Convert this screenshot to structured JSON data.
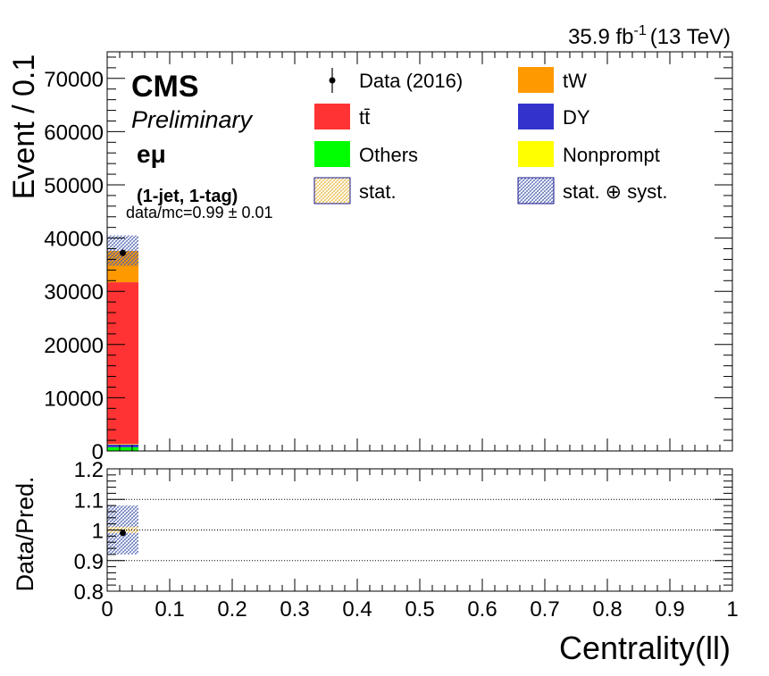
{
  "header": {
    "lumi_value": "35.9 fb",
    "lumi_exponent": "-1",
    "energy": "(13 TeV)"
  },
  "labels": {
    "experiment": "CMS",
    "status": "Preliminary",
    "channel": "eμ",
    "category": "(1-jet, 1-tag)",
    "ratio_text": "data/mc=0.99 ± 0.01"
  },
  "colors": {
    "ttbar": "#ff3333",
    "tW": "#ff9900",
    "DY": "#3333cc",
    "Others": "#00ff00",
    "Nonprompt": "#ffff00",
    "stat_hatch": "#e8b840",
    "syst_hatch": "#4a5fb0"
  },
  "legend": [
    {
      "key": "data",
      "label": "Data (2016)",
      "kind": "marker"
    },
    {
      "key": "tW",
      "label": "tW",
      "kind": "box"
    },
    {
      "key": "ttbar",
      "label": "tt̄",
      "kind": "box"
    },
    {
      "key": "DY",
      "label": "DY",
      "kind": "box"
    },
    {
      "key": "Others",
      "label": "Others",
      "kind": "box"
    },
    {
      "key": "Nonprompt",
      "label": "Nonprompt",
      "kind": "box"
    },
    {
      "key": "stat",
      "label": "stat.",
      "kind": "hatch-stat"
    },
    {
      "key": "syst",
      "label": "stat. ⊕ syst.",
      "kind": "hatch-syst"
    }
  ],
  "chart_data": [
    {
      "type": "bar",
      "stacked": true,
      "xlabel": "",
      "ylabel": "Event / 0.1",
      "xlim": [
        0,
        1
      ],
      "ylim": [
        0,
        75000
      ],
      "y_ticks": [
        0,
        10000,
        20000,
        30000,
        40000,
        50000,
        60000,
        70000
      ],
      "bin_edges": [
        0,
        0.05
      ],
      "series": [
        {
          "name": "Others",
          "key": "Others",
          "values": [
            700
          ]
        },
        {
          "name": "DY",
          "key": "DY",
          "values": [
            500
          ]
        },
        {
          "name": "Nonprompt",
          "key": "Nonprompt",
          "values": [
            100
          ]
        },
        {
          "name": "tt̄",
          "key": "ttbar",
          "values": [
            30400
          ]
        },
        {
          "name": "tW",
          "key": "tW",
          "values": [
            5900
          ]
        }
      ],
      "data_points": [
        {
          "x": 0.025,
          "y": 37200
        }
      ],
      "syst_band": [
        {
          "low": 34800,
          "high": 40500
        }
      ]
    },
    {
      "type": "scatter",
      "xlabel": "Centrality(ll)",
      "ylabel": "Data/Pred.",
      "xlim": [
        0,
        1
      ],
      "ylim": [
        0.8,
        1.2
      ],
      "y_ticks": [
        0.8,
        0.9,
        1,
        1.1,
        1.2
      ],
      "y_tick_labels": [
        "0.8",
        "0.9",
        "1",
        "1.1",
        "1.2"
      ],
      "x_ticks": [
        0,
        0.1,
        0.2,
        0.3,
        0.4,
        0.5,
        0.6,
        0.7,
        0.8,
        0.9,
        1
      ],
      "x_tick_labels": [
        "0",
        "0.1",
        "0.2",
        "0.3",
        "0.4",
        "0.5",
        "0.6",
        "0.7",
        "0.8",
        "0.9",
        "1"
      ],
      "reference_lines": [
        0.9,
        1.0,
        1.1
      ],
      "points": [
        {
          "x": 0.025,
          "y": 0.99
        }
      ],
      "syst_band": [
        {
          "low": 0.92,
          "high": 1.08
        }
      ],
      "stat_band": [
        {
          "low": 0.99,
          "high": 1.01
        }
      ]
    }
  ]
}
